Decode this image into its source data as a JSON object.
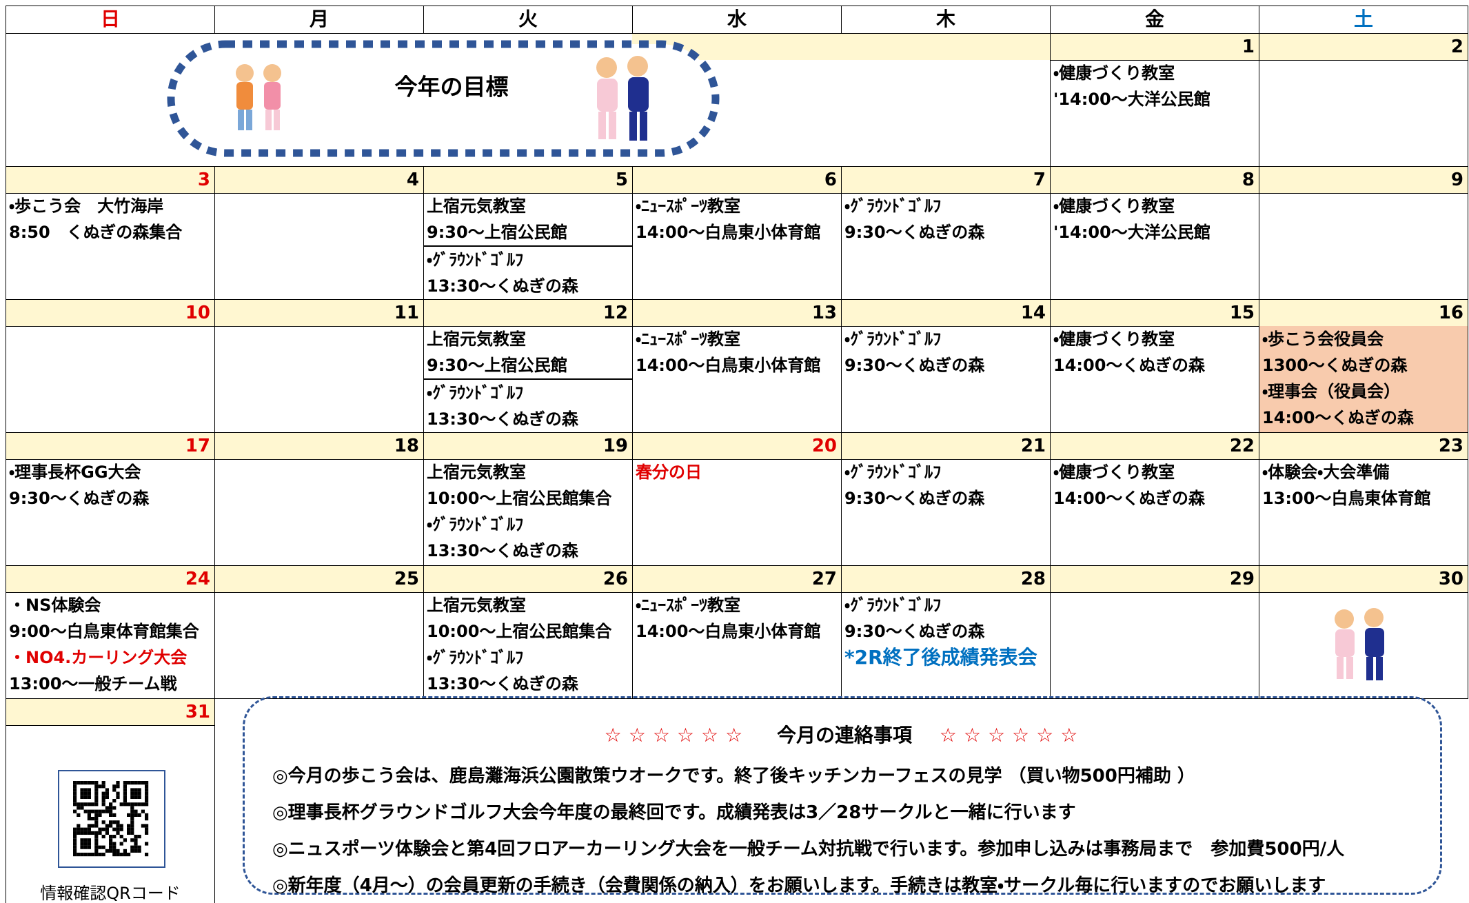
{
  "days": [
    {
      "label": "日",
      "color": "#e00000"
    },
    {
      "label": "月",
      "color": "#000000"
    },
    {
      "label": "火",
      "color": "#000000"
    },
    {
      "label": "水",
      "color": "#000000"
    },
    {
      "label": "木",
      "color": "#000000"
    },
    {
      "label": "金",
      "color": "#000000"
    },
    {
      "label": "土",
      "color": "#0070c0"
    }
  ],
  "goal": {
    "title": "今年の目標"
  },
  "weeks": [
    {
      "cells": [
        {
          "day": null,
          "groups": []
        },
        {
          "day": null,
          "groups": []
        },
        {
          "day": null,
          "groups": []
        },
        {
          "day": null,
          "groups": []
        },
        {
          "day": null,
          "groups": []
        },
        {
          "day": 1,
          "groups": [
            [
              {
                "text": "・健康づくり教室"
              },
              {
                "text": "'14:00～大洋公民館"
              }
            ]
          ]
        },
        {
          "day": 2,
          "groups": []
        }
      ]
    },
    {
      "cells": [
        {
          "day": 3,
          "color": "#e00000",
          "groups": [
            [
              {
                "text": "・歩こう会　大竹海岸"
              },
              {
                "text": " 8:50　くぬぎの森集合"
              }
            ]
          ]
        },
        {
          "day": 4,
          "groups": []
        },
        {
          "day": 5,
          "groups": [
            [
              {
                "text": "上宿元気教室"
              },
              {
                "text": " 9:30～上宿公民館"
              }
            ],
            [
              {
                "text": "・ｸﾞﾗｳﾝﾄﾞｺﾞﾙﾌ"
              },
              {
                "text": "13:30～くぬぎの森"
              }
            ]
          ]
        },
        {
          "day": 6,
          "groups": [
            [
              {
                "text": "・ﾆｭｰｽﾎﾟｰﾂ教室"
              },
              {
                "text": "14:00～白鳥東小体育館"
              }
            ]
          ]
        },
        {
          "day": 7,
          "groups": [
            [
              {
                "text": "・ｸﾞﾗｳﾝﾄﾞｺﾞﾙﾌ"
              },
              {
                "text": "9:30～くぬぎの森"
              }
            ]
          ]
        },
        {
          "day": 8,
          "groups": [
            [
              {
                "text": "・健康づくり教室"
              },
              {
                "text": "'14:00～大洋公民館"
              }
            ]
          ]
        },
        {
          "day": 9,
          "groups": []
        }
      ]
    },
    {
      "cells": [
        {
          "day": 10,
          "color": "#e00000",
          "groups": []
        },
        {
          "day": 11,
          "groups": []
        },
        {
          "day": 12,
          "groups": [
            [
              {
                "text": "上宿元気教室"
              },
              {
                "text": " 9:30～上宿公民館"
              }
            ],
            [
              {
                "text": "・ｸﾞﾗｳﾝﾄﾞｺﾞﾙﾌ"
              },
              {
                "text": "13:30～くぬぎの森"
              }
            ]
          ]
        },
        {
          "day": 13,
          "groups": [
            [
              {
                "text": "・ﾆｭｰｽﾎﾟｰﾂ教室"
              },
              {
                "text": "14:00～白鳥東小体育館"
              }
            ]
          ]
        },
        {
          "day": 14,
          "groups": [
            [
              {
                "text": "・ｸﾞﾗｳﾝﾄﾞｺﾞﾙﾌ"
              },
              {
                "text": "9:30～くぬぎの森"
              }
            ]
          ]
        },
        {
          "day": 15,
          "groups": [
            [
              {
                "text": "・健康づくり教室"
              },
              {
                "text": "14:00～くぬぎの森"
              }
            ]
          ]
        },
        {
          "day": 16,
          "background": "#f8cbad",
          "groups": [
            [
              {
                "text": "・歩こう会役員会"
              },
              {
                "text": "1300～くぬぎの森"
              },
              {
                "text": "・理事会（役員会）"
              },
              {
                "text": "14:00～くぬぎの森"
              }
            ]
          ]
        }
      ]
    },
    {
      "cells": [
        {
          "day": 17,
          "color": "#e00000",
          "groups": [
            [
              {
                "text": "・理事長杯GG大会"
              },
              {
                "text": "9:30～くぬぎの森"
              }
            ]
          ]
        },
        {
          "day": 18,
          "groups": []
        },
        {
          "day": 19,
          "groups": [
            [
              {
                "text": "上宿元気教室"
              },
              {
                "text": "10:00～上宿公民館集合"
              },
              {
                "text": "・ｸﾞﾗｳﾝﾄﾞｺﾞﾙﾌ"
              },
              {
                "text": "13:30～くぬぎの森"
              }
            ]
          ]
        },
        {
          "day": 20,
          "color": "#e00000",
          "groups": [
            [
              {
                "text": "春分の日",
                "color": "#e00000"
              }
            ]
          ]
        },
        {
          "day": 21,
          "groups": [
            [
              {
                "text": "・ｸﾞﾗｳﾝﾄﾞｺﾞﾙﾌ"
              },
              {
                "text": "9:30～くぬぎの森"
              }
            ]
          ]
        },
        {
          "day": 22,
          "groups": [
            [
              {
                "text": "・健康づくり教室"
              },
              {
                "text": "14:00～くぬぎの森"
              }
            ]
          ]
        },
        {
          "day": 23,
          "groups": [
            [
              {
                "text": "・体験会・大会準備"
              },
              {
                "text": "13:00～白鳥東体育館"
              }
            ]
          ]
        }
      ]
    },
    {
      "cells": [
        {
          "day": 24,
          "color": "#e00000",
          "groups": [
            [
              {
                "text": "・NS体験会"
              },
              {
                "text": "9:00～白鳥東体育館集合"
              },
              {
                "text": "・NO4.カーリング大会",
                "color": "#e00000"
              },
              {
                "text": "13:00～一般チーム戦"
              }
            ]
          ]
        },
        {
          "day": 25,
          "groups": []
        },
        {
          "day": 26,
          "groups": [
            [
              {
                "text": "上宿元気教室"
              },
              {
                "text": "10:00～上宿公民館集合"
              },
              {
                "text": "・ｸﾞﾗｳﾝﾄﾞｺﾞﾙﾌ"
              },
              {
                "text": "13:30～くぬぎの森"
              }
            ]
          ]
        },
        {
          "day": 27,
          "groups": [
            [
              {
                "text": "・ﾆｭｰｽﾎﾟｰﾂ教室"
              },
              {
                "text": "14:00～白鳥東小体育館"
              }
            ]
          ]
        },
        {
          "day": 28,
          "groups": [
            [
              {
                "text": "・ｸﾞﾗｳﾝﾄﾞｺﾞﾙﾌ"
              },
              {
                "text": "9:30～くぬぎの森"
              },
              {
                "text": "*2R終了後成績発表会",
                "color": "#0070c0"
              }
            ]
          ]
        },
        {
          "day": 29,
          "groups": []
        },
        {
          "day": 30,
          "groups": []
        }
      ]
    },
    {
      "cells": [
        {
          "day": 31,
          "color": "#e00000",
          "groups": []
        }
      ]
    }
  ],
  "notice": {
    "stars_left": "☆☆☆☆☆☆",
    "title": "今月の連絡事項",
    "stars_right": "☆☆☆☆☆☆",
    "lines": [
      "◎今月の歩こう会は、鹿島灘海浜公園散策ウオークです。終了後キッチンカーフェスの見学 （買い物500円補助 ）",
      "◎理事長杯グラウンドゴルフ大会今年度の最終回です。成績発表は3／28サークルと一緒に行います",
      "◎ニュスポーツ体験会と第4回フロアーカーリング大会を一般チーム対抗戦で行います。参加申し込みは事務局まで　参加費500円/人",
      "◎新年度（4月～）の会員更新の手続き（会費関係の納入）をお願いします。手続きは教室・サークル毎に行いますのでお願いします"
    ]
  },
  "qr": {
    "label": "情報確認QRコード"
  }
}
